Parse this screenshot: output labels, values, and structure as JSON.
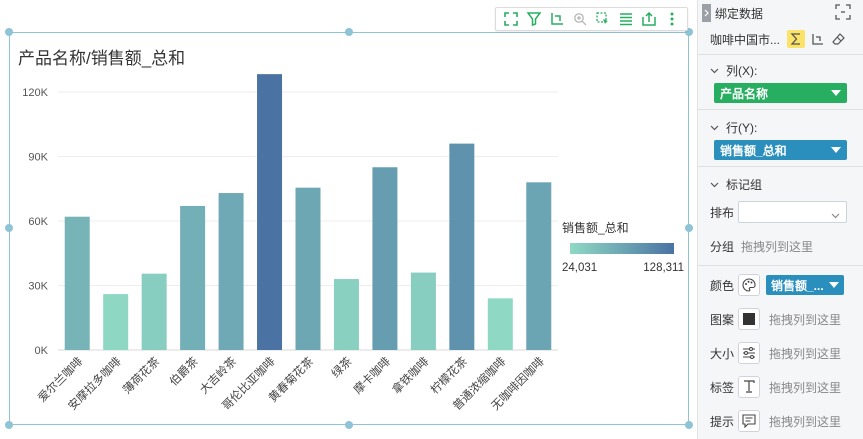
{
  "toolbar": {
    "icons": [
      "fullscreen-icon",
      "filter-icon",
      "drill-icon",
      "zoom-icon",
      "select-icon",
      "list-icon",
      "export-icon",
      "more-icon"
    ]
  },
  "chart_data": {
    "type": "bar",
    "title": "产品名称/销售额_总和",
    "categories": [
      "爱尔兰咖啡",
      "安摩拉多咖啡",
      "薄荷花茶",
      "伯爵茶",
      "大吉岭茶",
      "哥伦比亚咖啡",
      "黄春菊花茶",
      "绿茶",
      "摩卡咖啡",
      "拿铁咖啡",
      "柠檬花茶",
      "普通浓缩咖啡",
      "无咖啡因咖啡"
    ],
    "values": [
      62000,
      26000,
      35500,
      67000,
      73000,
      128311,
      75500,
      33000,
      85000,
      36000,
      96000,
      24031,
      78000
    ],
    "yticks": [
      "0K",
      "30K",
      "60K",
      "90K",
      "120K"
    ],
    "ylim": [
      0,
      128311
    ],
    "grid": true,
    "legend": {
      "title": "销售额_总和",
      "min_label": "24,031",
      "max_label": "128,311",
      "min": 24031,
      "max": 128311,
      "color_low": "#8fd9c4",
      "color_high": "#4a73a3",
      "placement": "right"
    }
  },
  "panel": {
    "title": "绑定数据",
    "dataset": "咖啡中国市...",
    "columns_label": "列(X):",
    "columns_field": "产品名称",
    "rows_label": "行(Y):",
    "rows_field": "销售额_总和",
    "marks_label": "标记组",
    "layout_label": "排布",
    "group_label": "分组",
    "drop_hint": "拖拽列到这里",
    "color_label": "颜色",
    "color_field": "销售额_...",
    "pattern_label": "图案",
    "size_label": "大小",
    "label_label": "标签",
    "tooltip_label": "提示"
  }
}
